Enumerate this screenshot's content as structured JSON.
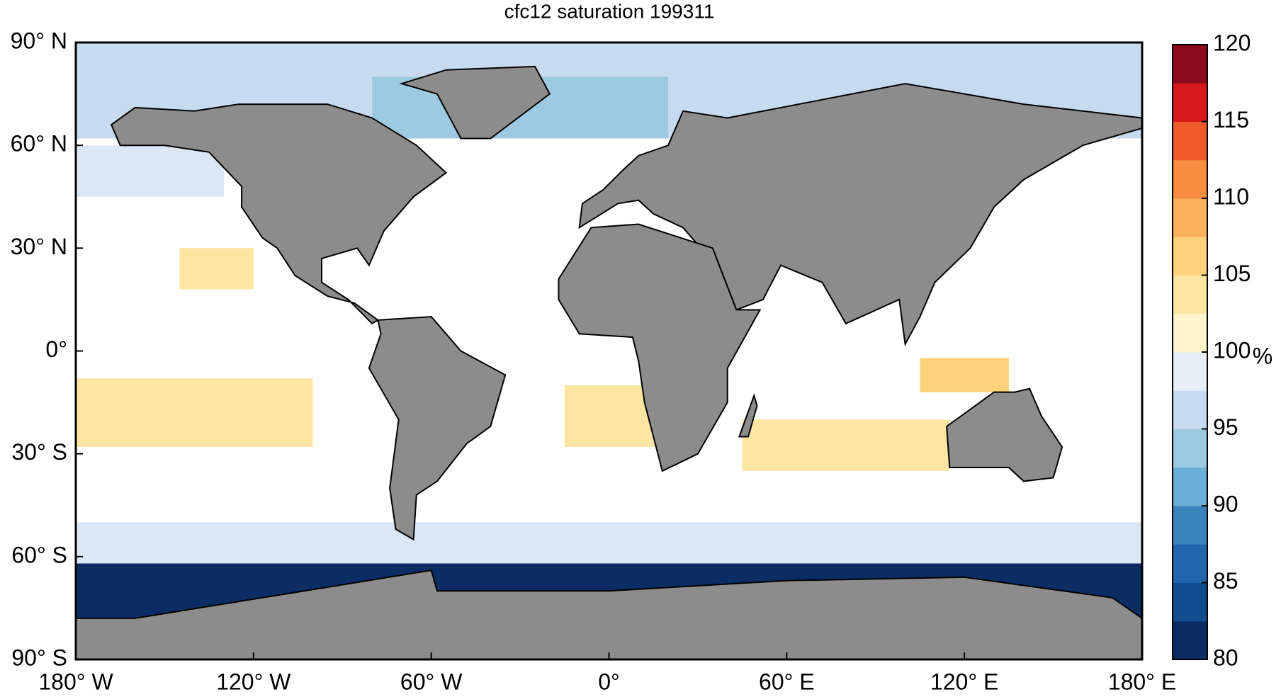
{
  "chart_data": {
    "type": "map",
    "title": "cfc12 saturation 199311",
    "xlim": [
      -180,
      180
    ],
    "ylim": [
      -90,
      90
    ],
    "xticks": [
      {
        "value": -180,
        "label": "180° W"
      },
      {
        "value": -120,
        "label": "120° W"
      },
      {
        "value": -60,
        "label": "60° W"
      },
      {
        "value": 0,
        "label": "0°"
      },
      {
        "value": 60,
        "label": "60° E"
      },
      {
        "value": 120,
        "label": "120° E"
      },
      {
        "value": 180,
        "label": "180° E"
      }
    ],
    "yticks": [
      {
        "value": 90,
        "label": "90° N"
      },
      {
        "value": 60,
        "label": "60° N"
      },
      {
        "value": 30,
        "label": "30° N"
      },
      {
        "value": 0,
        "label": "0°"
      },
      {
        "value": -30,
        "label": "30° S"
      },
      {
        "value": -60,
        "label": "60° S"
      },
      {
        "value": -90,
        "label": "90° S"
      }
    ],
    "colorbar": {
      "label": "%",
      "clim": [
        80,
        120
      ],
      "ticks": [
        80,
        85,
        90,
        95,
        100,
        105,
        110,
        115,
        120
      ],
      "colormap": [
        "#0b2d64",
        "#114d8e",
        "#2166ac",
        "#3a84bd",
        "#6baed6",
        "#9ecae1",
        "#c6dbef",
        "#e6eff8",
        "#fff4cc",
        "#fde6a1",
        "#fdd27b",
        "#fdb05d",
        "#f88d3f",
        "#ef5a2b",
        "#d7191c",
        "#8b0a1c"
      ]
    },
    "land_color": "#8c8c8c"
  }
}
